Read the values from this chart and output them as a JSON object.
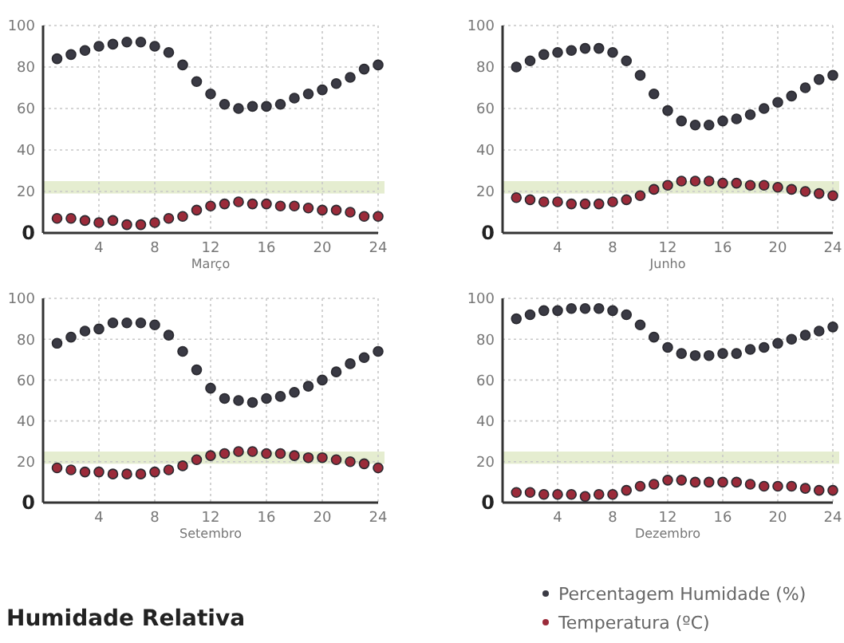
{
  "chart_data": [
    {
      "type": "scatter",
      "xlabel": "Março",
      "x": [
        1,
        2,
        3,
        4,
        5,
        6,
        7,
        8,
        9,
        10,
        11,
        12,
        13,
        14,
        15,
        16,
        17,
        18,
        19,
        20,
        21,
        22,
        23,
        24
      ],
      "xlim": [
        0,
        24
      ],
      "xticks": [
        4,
        8,
        12,
        16,
        20,
        24
      ],
      "ylim": [
        0,
        100
      ],
      "yticks": [
        0,
        20,
        40,
        60,
        80,
        100
      ],
      "grid": true,
      "marker": "circle",
      "bands": [
        {
          "axis": "y",
          "from": 19,
          "to": 25,
          "color": "#dfe9c4"
        }
      ],
      "series": [
        {
          "color": "#3a3a44",
          "values": [
            84,
            86,
            88,
            90,
            91,
            92,
            92,
            90,
            87,
            81,
            73,
            67,
            62,
            60,
            61,
            61,
            62,
            65,
            67,
            69,
            72,
            75,
            79,
            81
          ]
        },
        {
          "color": "#9b2b3a",
          "values": [
            7,
            7,
            6,
            5,
            6,
            4,
            4,
            5,
            7,
            8,
            11,
            13,
            14,
            15,
            14,
            14,
            13,
            13,
            12,
            11,
            11,
            10,
            8,
            8
          ]
        }
      ]
    },
    {
      "type": "scatter",
      "xlabel": "Junho",
      "x": [
        1,
        2,
        3,
        4,
        5,
        6,
        7,
        8,
        9,
        10,
        11,
        12,
        13,
        14,
        15,
        16,
        17,
        18,
        19,
        20,
        21,
        22,
        23,
        24
      ],
      "xlim": [
        0,
        24
      ],
      "xticks": [
        4,
        8,
        12,
        16,
        20,
        24
      ],
      "ylim": [
        0,
        100
      ],
      "yticks": [
        0,
        20,
        40,
        60,
        80,
        100
      ],
      "grid": true,
      "marker": "circle",
      "bands": [
        {
          "axis": "y",
          "from": 19,
          "to": 25,
          "color": "#dfe9c4"
        }
      ],
      "series": [
        {
          "color": "#3a3a44",
          "values": [
            80,
            83,
            86,
            87,
            88,
            89,
            89,
            87,
            83,
            76,
            67,
            59,
            54,
            52,
            52,
            54,
            55,
            57,
            60,
            63,
            66,
            70,
            74,
            76
          ]
        },
        {
          "color": "#9b2b3a",
          "values": [
            17,
            16,
            15,
            15,
            14,
            14,
            14,
            15,
            16,
            18,
            21,
            23,
            25,
            25,
            25,
            24,
            24,
            23,
            23,
            22,
            21,
            20,
            19,
            18
          ]
        }
      ]
    },
    {
      "type": "scatter",
      "xlabel": "Setembro",
      "x": [
        1,
        2,
        3,
        4,
        5,
        6,
        7,
        8,
        9,
        10,
        11,
        12,
        13,
        14,
        15,
        16,
        17,
        18,
        19,
        20,
        21,
        22,
        23,
        24
      ],
      "xlim": [
        0,
        24
      ],
      "xticks": [
        4,
        8,
        12,
        16,
        20,
        24
      ],
      "ylim": [
        0,
        100
      ],
      "yticks": [
        0,
        20,
        40,
        60,
        80,
        100
      ],
      "grid": true,
      "marker": "circle",
      "bands": [
        {
          "axis": "y",
          "from": 19,
          "to": 25,
          "color": "#dfe9c4"
        }
      ],
      "annotations": [
        "Humidade Relativa"
      ],
      "series": [
        {
          "color": "#3a3a44",
          "values": [
            78,
            81,
            84,
            85,
            88,
            88,
            88,
            87,
            82,
            74,
            65,
            56,
            51,
            50,
            49,
            51,
            52,
            54,
            57,
            60,
            64,
            68,
            71,
            74
          ]
        },
        {
          "color": "#9b2b3a",
          "values": [
            17,
            16,
            15,
            15,
            14,
            14,
            14,
            15,
            16,
            18,
            21,
            23,
            24,
            25,
            25,
            24,
            24,
            23,
            22,
            22,
            21,
            20,
            19,
            17
          ]
        }
      ]
    },
    {
      "type": "scatter",
      "xlabel": "Dezembro",
      "x": [
        1,
        2,
        3,
        4,
        5,
        6,
        7,
        8,
        9,
        10,
        11,
        12,
        13,
        14,
        15,
        16,
        17,
        18,
        19,
        20,
        21,
        22,
        23,
        24
      ],
      "xlim": [
        0,
        24
      ],
      "xticks": [
        4,
        8,
        12,
        16,
        20,
        24
      ],
      "ylim": [
        0,
        100
      ],
      "yticks": [
        0,
        20,
        40,
        60,
        80,
        100
      ],
      "grid": true,
      "marker": "circle",
      "legend": "bottom",
      "bands": [
        {
          "axis": "y",
          "from": 19,
          "to": 25,
          "color": "#dfe9c4"
        }
      ],
      "series": [
        {
          "name": "Percentagem Humidade (%)",
          "color": "#3a3a44",
          "values": [
            90,
            92,
            94,
            94,
            95,
            95,
            95,
            94,
            92,
            87,
            81,
            76,
            73,
            72,
            72,
            73,
            73,
            75,
            76,
            78,
            80,
            82,
            84,
            86
          ]
        },
        {
          "name": "Temperatura (ºC)",
          "color": "#9b2b3a",
          "values": [
            5,
            5,
            4,
            4,
            4,
            3,
            4,
            4,
            6,
            8,
            9,
            11,
            11,
            10,
            10,
            10,
            10,
            9,
            8,
            8,
            8,
            7,
            6,
            6
          ]
        }
      ]
    }
  ]
}
